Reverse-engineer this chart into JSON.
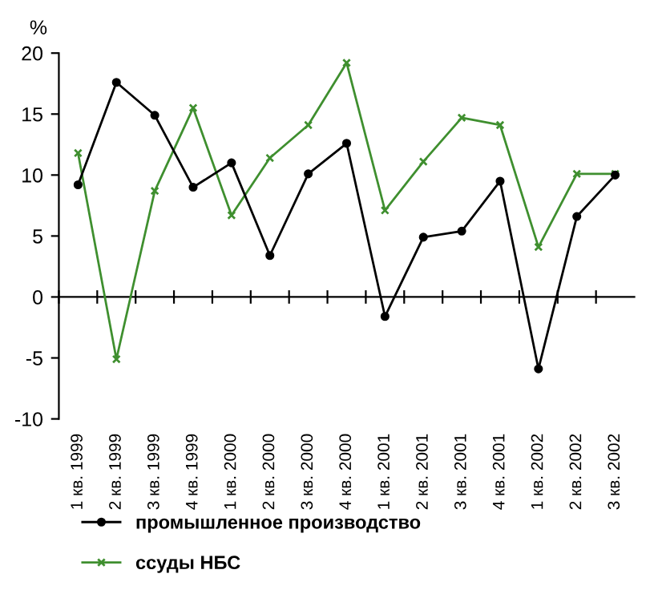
{
  "chart_data": {
    "type": "line",
    "ylabel": "%",
    "categories": [
      "1 кв. 1999",
      "2 кв. 1999",
      "3 кв. 1999",
      "4 кв. 1999",
      "1 кв. 2000",
      "2 кв. 2000",
      "3 кв. 2000",
      "4 кв. 2000",
      "1 кв. 2001",
      "2 кв. 2001",
      "3 кв. 2001",
      "4 кв. 2001",
      "1 кв. 2002",
      "2 кв. 2002",
      "3 кв. 2002"
    ],
    "series": [
      {
        "name": "промышленное производство",
        "color": "#000000",
        "marker": "circle",
        "values": [
          9.2,
          17.6,
          14.9,
          9.0,
          11.0,
          3.4,
          10.1,
          12.6,
          -1.6,
          4.9,
          5.4,
          9.5,
          -5.9,
          6.6,
          10.0
        ]
      },
      {
        "name": "ссуды НБС",
        "color": "#3f8f2f",
        "marker": "cross",
        "values": [
          11.8,
          -5.1,
          8.7,
          15.5,
          6.7,
          11.4,
          14.1,
          19.2,
          7.1,
          11.1,
          14.7,
          14.1,
          4.1,
          10.1,
          10.1
        ]
      }
    ],
    "ylim": [
      -10,
      20
    ],
    "yticks": [
      -10,
      -5,
      0,
      5,
      10,
      15,
      20
    ],
    "legend": "bottom",
    "line_style": "solid"
  }
}
